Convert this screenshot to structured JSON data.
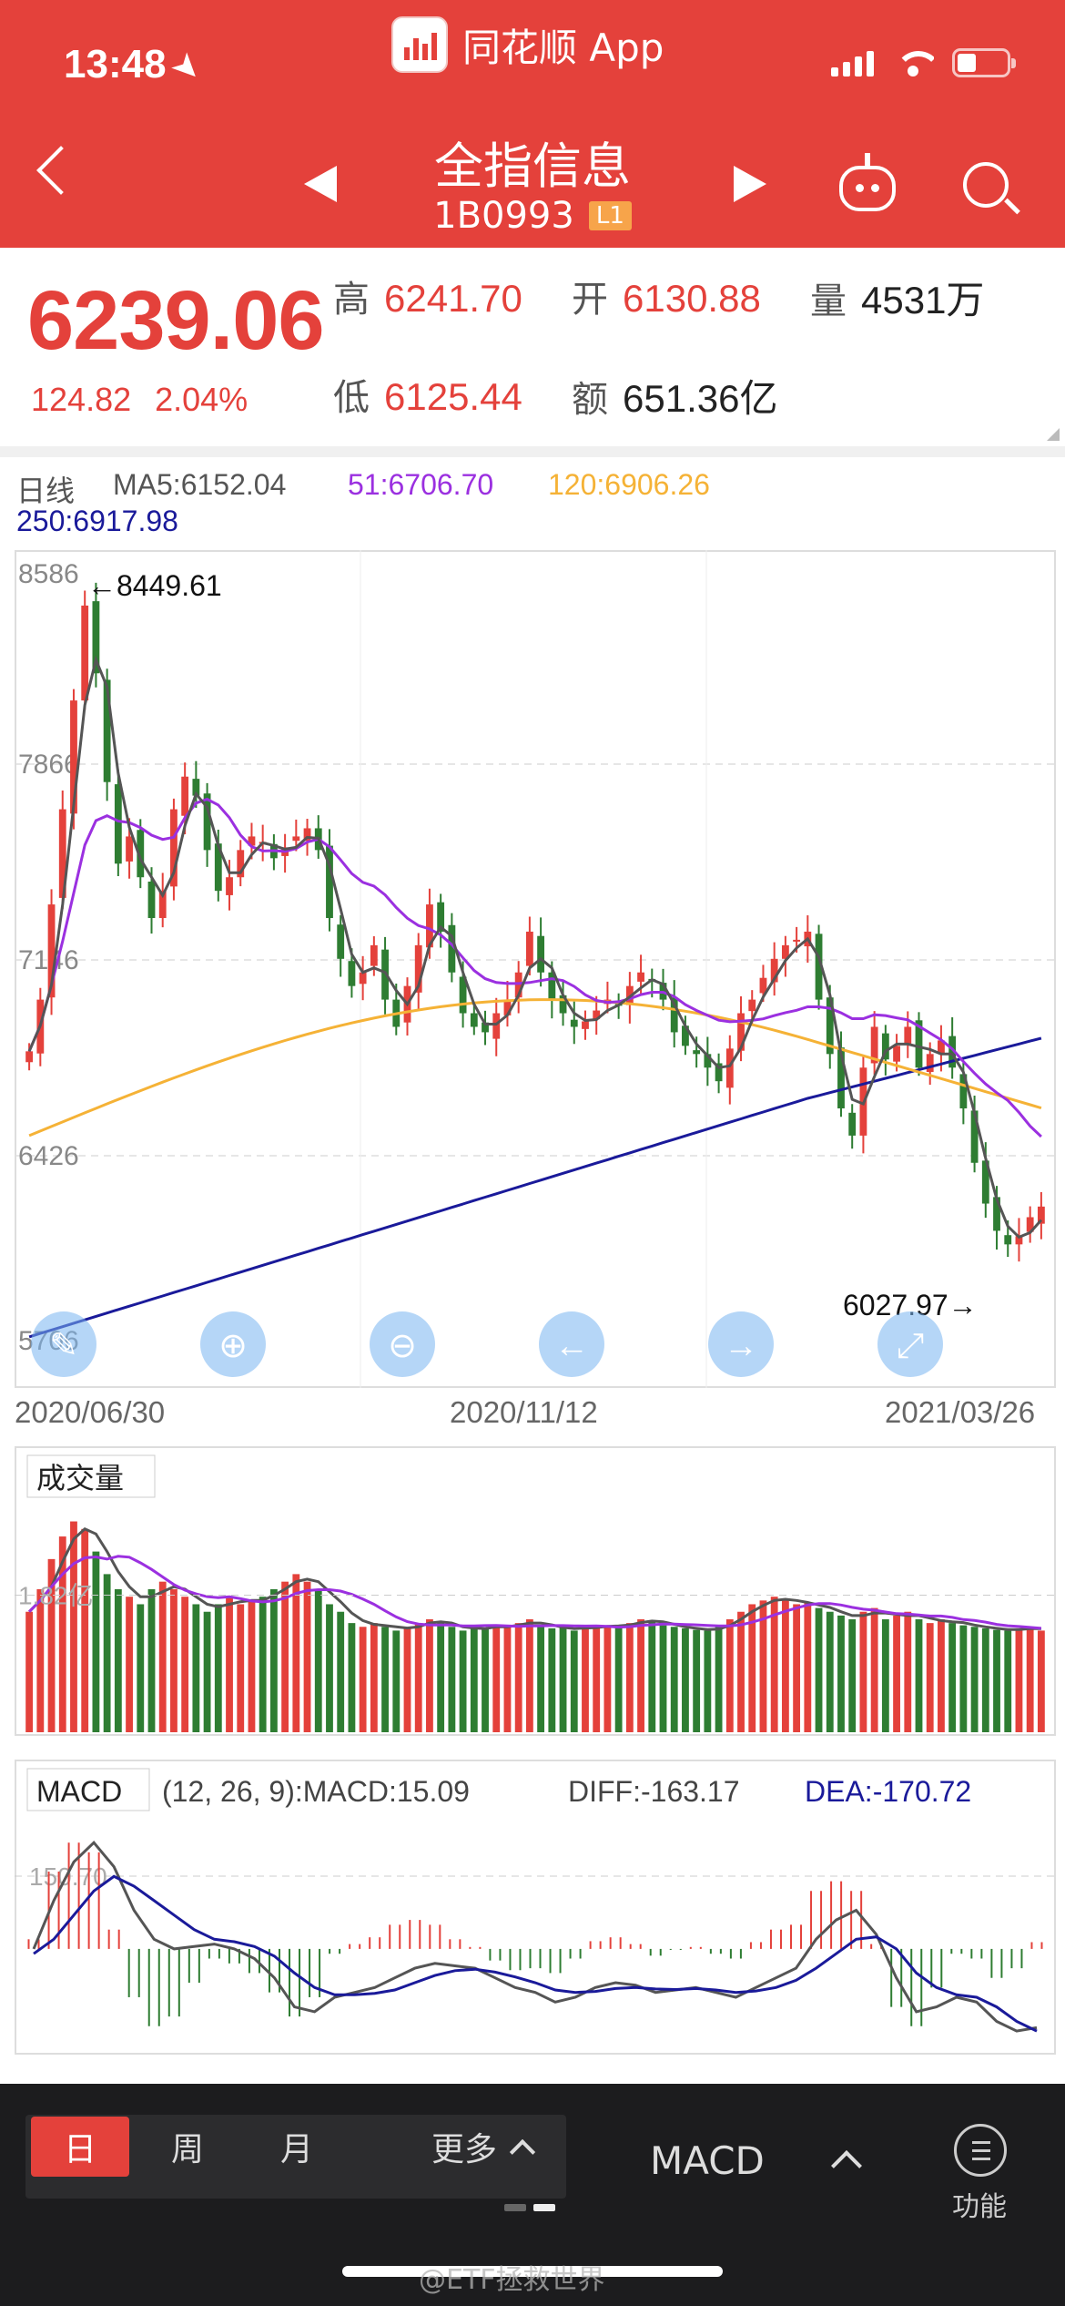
{
  "status_bar": {
    "time": "13:48",
    "app_name": "同花顺 App"
  },
  "header": {
    "title": "全指信息",
    "code": "1B0993",
    "level_badge": "L1"
  },
  "quote": {
    "price": "6239.06",
    "change": "124.82",
    "change_pct": "2.04%",
    "high_label": "高",
    "high": "6241.70",
    "open_label": "开",
    "open": "6130.88",
    "volume_label": "量",
    "volume": "4531万",
    "low_label": "低",
    "low": "6125.44",
    "amount_label": "额",
    "amount": "651.36亿"
  },
  "indicators": {
    "period": "日线",
    "ma5": "MA5:6152.04",
    "ma51": "51:6706.70",
    "ma120": "120:6906.26",
    "ma250": "250:6917.98"
  },
  "colors": {
    "up": "#e4413b",
    "down": "#2e7d32",
    "ma5": "#555555",
    "ma51": "#9b30e0",
    "ma120": "#f5b236",
    "ma250": "#1a1a9a"
  },
  "chart_data": [
    {
      "type": "candlestick",
      "y_ticks": [
        "8586",
        "7866",
        "7146",
        "6426",
        "5706"
      ],
      "ylim": [
        5706,
        8586
      ],
      "x_ticks": [
        "2020/06/30",
        "2020/11/12",
        "2021/03/26"
      ],
      "annotations": {
        "max_label": "←8449.61",
        "min_label": "6027.97→"
      },
      "close_approx": [
        6810,
        7000,
        7350,
        7700,
        8100,
        8449,
        8200,
        7800,
        7500,
        7600,
        7450,
        7300,
        7400,
        7700,
        7820,
        7750,
        7550,
        7400,
        7450,
        7550,
        7600,
        7580,
        7520,
        7560,
        7600,
        7630,
        7550,
        7300,
        7150,
        7050,
        7100,
        7200,
        7000,
        6900,
        7050,
        7200,
        7350,
        7250,
        7100,
        6950,
        6900,
        6880,
        6950,
        7000,
        7100,
        7250,
        7100,
        7000,
        6950,
        6900,
        6920,
        6960,
        7000,
        6980,
        7050,
        7100,
        7070,
        7000,
        6880,
        6830,
        6800,
        6750,
        6700,
        6820,
        6950,
        7000,
        7080,
        7150,
        7200,
        7220,
        7250,
        7000,
        6800,
        6600,
        6500,
        6750,
        6900,
        6780,
        6830,
        6900,
        6750,
        6800,
        6850,
        6750,
        6600,
        6400,
        6250,
        6150,
        6100,
        6130,
        6200,
        6239.06
      ],
      "series": [
        {
          "name": "MA5"
        },
        {
          "name": "51"
        },
        {
          "name": "120"
        },
        {
          "name": "250"
        }
      ]
    },
    {
      "type": "bar",
      "title": "成交量",
      "y_tick": "1.82亿",
      "volume_approx": [
        1.6,
        1.9,
        2.3,
        2.6,
        2.8,
        2.7,
        2.4,
        2.1,
        1.9,
        1.8,
        1.7,
        1.9,
        2.0,
        1.9,
        1.8,
        1.7,
        1.6,
        1.7,
        1.8,
        1.7,
        1.75,
        1.8,
        1.9,
        2.0,
        2.1,
        2.0,
        1.9,
        1.7,
        1.6,
        1.45,
        1.4,
        1.45,
        1.4,
        1.35,
        1.4,
        1.45,
        1.5,
        1.45,
        1.4,
        1.35,
        1.4,
        1.38,
        1.42,
        1.4,
        1.45,
        1.5,
        1.4,
        1.38,
        1.4,
        1.35,
        1.4,
        1.42,
        1.4,
        1.42,
        1.45,
        1.5,
        1.48,
        1.42,
        1.4,
        1.38,
        1.36,
        1.35,
        1.4,
        1.5,
        1.6,
        1.7,
        1.75,
        1.8,
        1.75,
        1.7,
        1.72,
        1.65,
        1.6,
        1.55,
        1.5,
        1.6,
        1.65,
        1.5,
        1.55,
        1.6,
        1.5,
        1.45,
        1.5,
        1.45,
        1.42,
        1.4,
        1.38,
        1.36,
        1.35,
        1.38,
        1.4,
        1.35
      ]
    },
    {
      "type": "line",
      "title": "MACD",
      "params": "(12, 26, 9):MACD:15.09",
      "diff_label": "DIFF:-163.17",
      "dea_label": "DEA:-170.72",
      "y_tick": "150.70",
      "diff_approx": [
        0,
        100,
        180,
        220,
        170,
        80,
        20,
        0,
        5,
        10,
        0,
        -20,
        -60,
        -120,
        -130,
        -100,
        -90,
        -80,
        -60,
        -40,
        -30,
        -35,
        -40,
        -60,
        -80,
        -90,
        -110,
        -100,
        -80,
        -70,
        -75,
        -90,
        -85,
        -80,
        -90,
        -100,
        -80,
        -60,
        -40,
        20,
        60,
        80,
        30,
        -60,
        -130,
        -120,
        -100,
        -110,
        -150,
        -170,
        -163
      ],
      "dea_approx": [
        -10,
        20,
        70,
        120,
        150,
        130,
        100,
        70,
        40,
        20,
        15,
        5,
        -15,
        -50,
        -80,
        -95,
        -95,
        -92,
        -85,
        -70,
        -55,
        -45,
        -42,
        -48,
        -58,
        -70,
        -85,
        -90,
        -88,
        -82,
        -80,
        -83,
        -84,
        -82,
        -85,
        -90,
        -87,
        -80,
        -65,
        -40,
        -10,
        20,
        25,
        0,
        -50,
        -80,
        -95,
        -100,
        -120,
        -150,
        -170
      ]
    }
  ],
  "zoom_tools": [
    "pen-icon",
    "zoom-in-icon",
    "zoom-out-icon",
    "arrow-left-icon",
    "arrow-right-icon",
    "fullscreen-icon"
  ],
  "bottom_bar": {
    "tabs": [
      "日",
      "周",
      "月"
    ],
    "more": "更多",
    "indicator": "MACD",
    "function_label": "功能"
  },
  "watermark": "@ETF拯救世界"
}
